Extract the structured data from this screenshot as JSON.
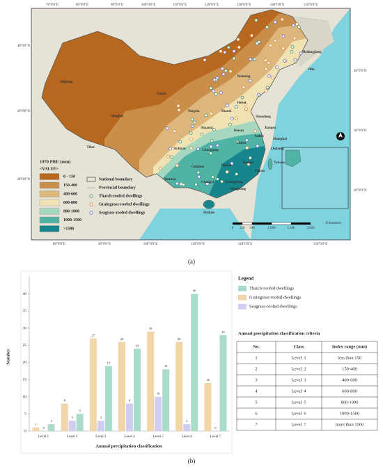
{
  "map": {
    "legend_title": "1970 PRE (mm)",
    "legend_subtitle": "<VALUE>",
    "classes": [
      {
        "label": "0 - 150",
        "color": "#b8681e"
      },
      {
        "label": "150-400",
        "color": "#c98f4a"
      },
      {
        "label": "400-600",
        "color": "#dcb67a"
      },
      {
        "label": "600-800",
        "color": "#f1e2b4"
      },
      {
        "label": "800-1000",
        "color": "#a6d8c0"
      },
      {
        "label": "1000-1500",
        "color": "#4fb3a5"
      },
      {
        "label": ">1500",
        "color": "#16858c"
      }
    ],
    "symbols": [
      "National boundary",
      "Provincial boundary",
      "Thatch-roofed dwellings",
      "Graingrass-roofed dwellings",
      "Seagrass-roofed dwellings"
    ],
    "lon_labels_top": [
      "70°0'0\"E",
      "80°0'0\"E",
      "90°0'0\"E",
      "100°0'0\"E",
      "110°0'0\"E",
      "120°0'0\"E",
      "130°0'0\"E",
      "140°0'0\"E",
      "150°0'0\"E"
    ],
    "lon_labels_bottom": [
      "80°0'0\"E",
      "90°0'0\"E",
      "100°0'0\"E",
      "110°0'0\"E",
      "120°0'0\"E",
      "150°0'0\"E"
    ],
    "lat_labels_left": [
      "40°0'0\"N",
      "30°0'0\"N",
      "20°0'0\"N"
    ],
    "lat_labels_right": [
      "40°0'0\"N",
      "30°0'0\"N",
      "20°0'0\"N"
    ],
    "places": [
      "Xinjiang",
      "Gansu",
      "Qinghai",
      "Tibet",
      "Neimeng",
      "Heilongjiang",
      "Jilin",
      "Ningxia",
      "Shanxi",
      "Hebei",
      "Shandong",
      "Henan",
      "Shaanxi",
      "Sichuan",
      "Chongqing",
      "Hubei",
      "Anhui",
      "Jiangsu",
      "Shanghai",
      "Zhejiang",
      "Hunan",
      "Jiangxi",
      "Guizhou",
      "Yunnan",
      "Guangxi",
      "Guangdong",
      "Fujian",
      "Hongkong",
      "Taiwan",
      "Hainan"
    ],
    "scale_labels": [
      "0",
      "250",
      "500",
      "1,000",
      "1,500",
      "2,000"
    ],
    "scale_unit": "Kilometers",
    "panel_label": "(a)"
  },
  "chart_data": {
    "type": "bar",
    "categories": [
      "Level 1",
      "Level 2",
      "Level 3",
      "Level 4",
      "Level 5",
      "Level 6",
      "Level 7"
    ],
    "series": [
      {
        "name": "Thatch-roofed dwellings",
        "color": "#a9dcc9",
        "values": [
          2,
          5,
          19,
          24,
          18,
          40,
          28
        ]
      },
      {
        "name": "Graingrass-roofed dwellings",
        "color": "#f3d6a8",
        "values": [
          1,
          8,
          27,
          26,
          29,
          26,
          14
        ]
      },
      {
        "name": "Seagrass-roofed dwellings",
        "color": "#cfcdf0",
        "values": [
          0,
          3,
          3,
          8,
          10,
          2,
          0
        ]
      }
    ],
    "ylim": [
      0,
      45
    ],
    "yticks": [
      0,
      5,
      10,
      15,
      20,
      25,
      30,
      35,
      40
    ],
    "y_label": "Number",
    "x_label": "Annual precipitation classification",
    "legend_title": "Legend",
    "panel_label": "(b)"
  },
  "table": {
    "title": "Annual precipitation classification criteria",
    "header": [
      "No.",
      "Class",
      "Index range (mm)"
    ],
    "rows": [
      [
        "1",
        "Level  1",
        "less than 150"
      ],
      [
        "2",
        "Level  2",
        "150-400"
      ],
      [
        "3",
        "Level  3",
        "400-600"
      ],
      [
        "4",
        "Level  4",
        "600-800"
      ],
      [
        "5",
        "Level  5",
        "800-1000"
      ],
      [
        "6",
        "Level  6",
        "1000-1500"
      ],
      [
        "7",
        "Level  7",
        "more than 1500"
      ]
    ]
  }
}
